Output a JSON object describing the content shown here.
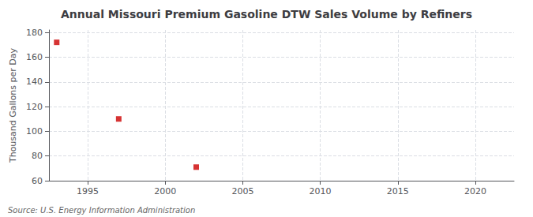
{
  "chart_data": {
    "type": "scatter",
    "title": "Annual Missouri Premium Gasoline DTW Sales Volume by Refiners",
    "ylabel": "Thousand Gallons per Day",
    "annotations": [
      "Source: U.S. Energy Information Administration"
    ],
    "x": [
      1993,
      1997,
      2002
    ],
    "values": [
      172,
      110,
      71
    ],
    "color": "#cc0000",
    "marker": "square",
    "xlim": [
      1992.5,
      2022.5
    ],
    "xticks": [
      1995,
      2000,
      2005,
      2010,
      2015,
      2020
    ],
    "ylim": [
      60,
      182
    ],
    "yticks": [
      60,
      80,
      100,
      120,
      140,
      160,
      180
    ],
    "grid": true
  }
}
